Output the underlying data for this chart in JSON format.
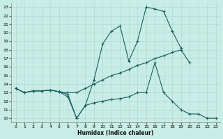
{
  "bg_color": "#c8ece6",
  "line_color": "#1a6060",
  "xlabel": "Humidex (Indice chaleur)",
  "xlim": [
    -0.5,
    23.5
  ],
  "ylim": [
    9.5,
    23.5
  ],
  "xticks": [
    0,
    1,
    2,
    3,
    4,
    5,
    6,
    7,
    8,
    9,
    10,
    11,
    12,
    13,
    14,
    15,
    16,
    17,
    18,
    19,
    20,
    21,
    22,
    23
  ],
  "yticks": [
    10,
    11,
    12,
    13,
    14,
    15,
    16,
    17,
    18,
    19,
    20,
    21,
    22,
    23
  ],
  "line1_x": [
    0,
    1,
    2,
    3,
    4,
    5,
    6,
    7,
    8,
    9,
    10,
    11,
    12,
    13,
    14,
    15,
    16,
    17,
    18,
    19
  ],
  "line1_y": [
    13.5,
    13.0,
    13.2,
    13.2,
    13.3,
    13.1,
    12.8,
    10.0,
    11.5,
    14.5,
    18.7,
    20.2,
    20.8,
    16.7,
    19.0,
    23.0,
    22.8,
    22.5,
    20.2,
    18.2
  ],
  "line2_x": [
    0,
    1,
    2,
    3,
    4,
    5,
    6,
    7,
    8,
    9,
    10,
    11,
    12,
    13,
    14,
    15,
    16,
    17,
    18,
    19,
    20
  ],
  "line2_y": [
    13.5,
    13.0,
    13.2,
    13.2,
    13.3,
    13.1,
    13.0,
    13.0,
    13.5,
    14.0,
    14.5,
    15.0,
    15.3,
    15.7,
    16.2,
    16.5,
    17.0,
    17.3,
    17.7,
    18.0,
    16.5
  ],
  "line3_x": [
    0,
    1,
    2,
    3,
    4,
    5,
    6,
    7,
    8,
    9,
    10,
    11,
    12,
    13,
    14,
    15,
    16,
    17,
    18,
    19,
    20,
    21,
    22,
    23
  ],
  "line3_y": [
    13.5,
    13.0,
    13.2,
    13.2,
    13.3,
    13.1,
    12.5,
    10.0,
    11.5,
    11.8,
    12.0,
    12.2,
    12.3,
    12.5,
    13.0,
    13.0,
    16.5,
    13.0,
    12.0,
    11.0,
    10.5,
    10.5,
    10.0,
    10.0
  ]
}
